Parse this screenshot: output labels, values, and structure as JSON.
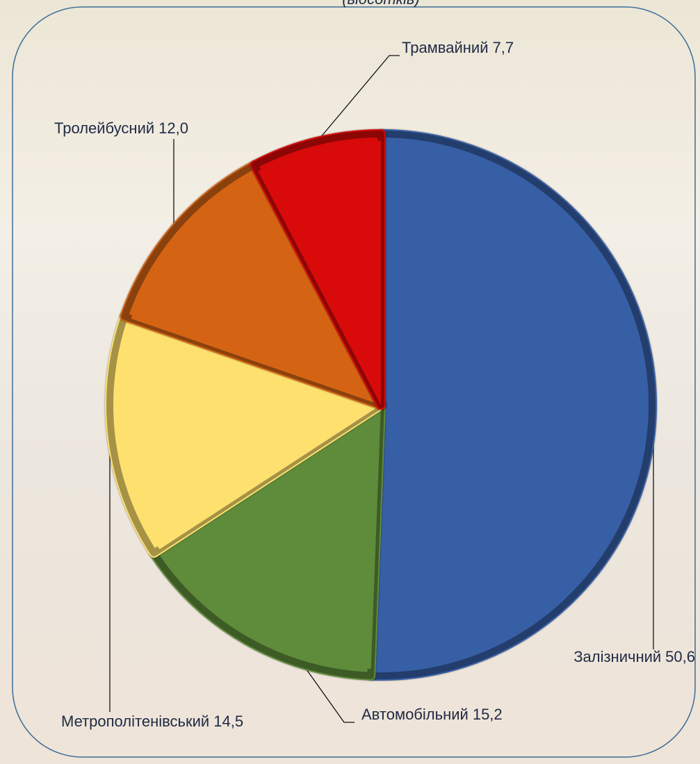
{
  "chart_data": {
    "type": "pie",
    "subtitle": "(відсотків)",
    "categories": [
      "Залізничний",
      "Автомобільний",
      "Метрополітенівський",
      "Тролейбусний",
      "Трамвайний"
    ],
    "values": [
      50.6,
      15.2,
      14.5,
      12.0,
      7.7
    ],
    "value_labels": [
      "50,6",
      "15,2",
      "14,5",
      "12,0",
      "7,7"
    ],
    "colors": [
      "#375fa6",
      "#5e8c3a",
      "#fde06e",
      "#d46414",
      "#d80a0a"
    ]
  }
}
